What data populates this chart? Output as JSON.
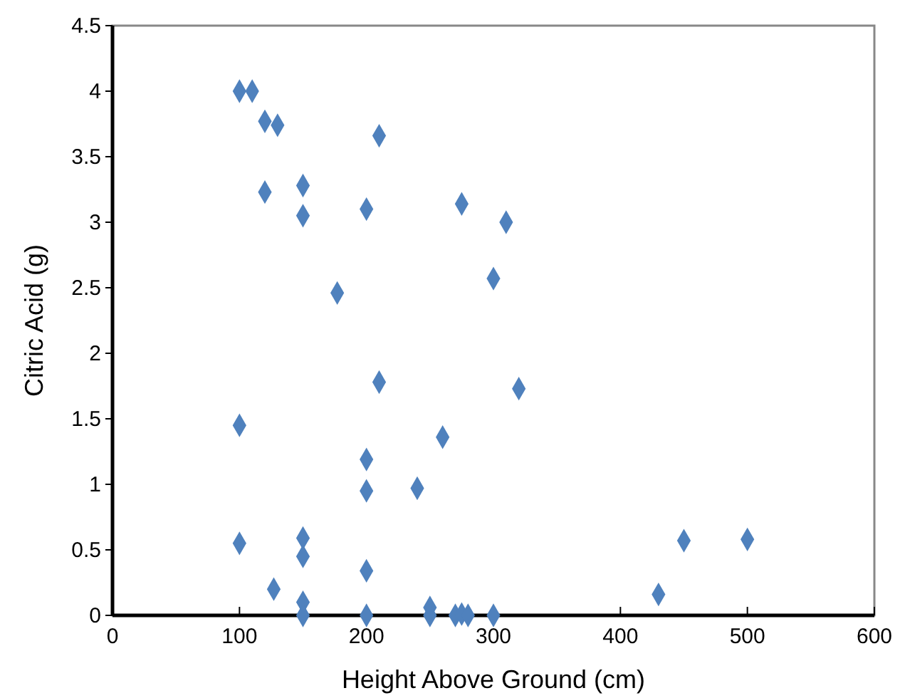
{
  "chart_data": {
    "type": "scatter",
    "xlabel": "Height Above Ground (cm)",
    "ylabel": "Citric Acid (g)",
    "xlim": [
      0,
      600
    ],
    "xticks": [
      0,
      100,
      200,
      300,
      400,
      500,
      600
    ],
    "ylim": [
      0,
      4.5
    ],
    "yticks": [
      0,
      0.5,
      1,
      1.5,
      2,
      2.5,
      3,
      3.5,
      4,
      4.5
    ],
    "marker": "diamond",
    "grid": false,
    "series": [
      {
        "color": "#4f81bd",
        "x": [
          100,
          110,
          120,
          130,
          210,
          120,
          150,
          150,
          200,
          275,
          310,
          300,
          177,
          210,
          320,
          100,
          260,
          200,
          200,
          240,
          100,
          150,
          150,
          200,
          127,
          150,
          150,
          200,
          250,
          250,
          270,
          275,
          280,
          300,
          450,
          500,
          430
        ],
        "values": [
          4.0,
          4.0,
          3.77,
          3.74,
          3.66,
          3.23,
          3.28,
          3.05,
          3.1,
          3.14,
          3.0,
          2.57,
          2.46,
          1.78,
          1.73,
          1.45,
          1.36,
          1.19,
          0.95,
          0.97,
          0.55,
          0.59,
          0.45,
          0.34,
          0.2,
          0.1,
          0,
          0,
          0.06,
          0,
          0,
          0.01,
          0,
          0,
          0.57,
          0.58,
          0.16
        ]
      }
    ]
  }
}
